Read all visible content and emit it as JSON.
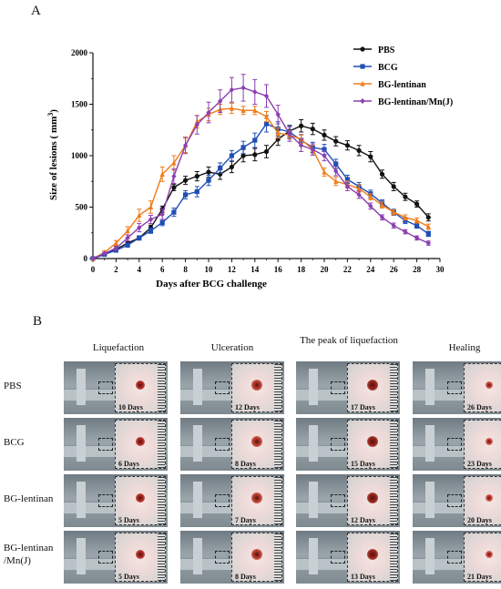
{
  "panels": {
    "a": "A",
    "b": "B"
  },
  "chart_data": {
    "type": "line",
    "xlabel": "Days after BCG challenge",
    "ylabel_main": "Size of lesions (  mm",
    "ylabel_sup": "3",
    "ylabel_end": ")",
    "xlim": [
      0,
      30
    ],
    "ylim": [
      0,
      2000
    ],
    "xticks": [
      0,
      2,
      4,
      6,
      8,
      10,
      12,
      14,
      16,
      18,
      20,
      22,
      24,
      26,
      28,
      30
    ],
    "yticks": [
      0,
      500,
      1000,
      1500,
      2000
    ],
    "legend_position": "top-right",
    "series": [
      {
        "name": "PBS",
        "color": "#111111",
        "marker": "circle",
        "x": [
          0,
          1,
          2,
          3,
          4,
          5,
          6,
          7,
          8,
          9,
          10,
          11,
          12,
          13,
          14,
          15,
          16,
          17,
          18,
          19,
          20,
          21,
          22,
          23,
          24,
          25,
          26,
          27,
          28,
          29
        ],
        "y": [
          0,
          40,
          90,
          150,
          200,
          300,
          480,
          690,
          760,
          800,
          840,
          820,
          890,
          1000,
          1010,
          1040,
          1160,
          1240,
          1290,
          1260,
          1200,
          1140,
          1100,
          1050,
          990,
          820,
          700,
          600,
          530,
          400
        ],
        "err": [
          0,
          10,
          15,
          20,
          20,
          25,
          30,
          30,
          40,
          45,
          50,
          50,
          55,
          60,
          60,
          60,
          60,
          55,
          60,
          55,
          50,
          45,
          45,
          50,
          50,
          40,
          40,
          35,
          30,
          35
        ]
      },
      {
        "name": "BCG",
        "color": "#1f4fb5",
        "marker": "square",
        "x": [
          0,
          1,
          2,
          3,
          4,
          5,
          6,
          7,
          8,
          9,
          10,
          11,
          12,
          13,
          14,
          15,
          16,
          17,
          18,
          19,
          20,
          21,
          22,
          23,
          24,
          25,
          26,
          27,
          28,
          29
        ],
        "y": [
          0,
          40,
          80,
          130,
          200,
          270,
          350,
          450,
          620,
          650,
          760,
          880,
          1000,
          1080,
          1150,
          1310,
          1260,
          1230,
          1150,
          1080,
          1060,
          920,
          770,
          700,
          630,
          540,
          450,
          370,
          320,
          240
        ],
        "err": [
          0,
          10,
          15,
          20,
          20,
          25,
          30,
          40,
          40,
          50,
          50,
          50,
          50,
          60,
          70,
          80,
          70,
          60,
          55,
          50,
          50,
          45,
          40,
          40,
          35,
          30,
          30,
          30,
          25,
          25
        ]
      },
      {
        "name": "BG-lentinan",
        "color": "#ef7c1a",
        "marker": "triangle",
        "x": [
          0,
          1,
          2,
          3,
          4,
          5,
          6,
          7,
          8,
          9,
          10,
          11,
          12,
          13,
          14,
          15,
          16,
          17,
          18,
          19,
          20,
          21,
          22,
          23,
          24,
          25,
          26,
          27,
          28,
          29
        ],
        "y": [
          0,
          60,
          150,
          270,
          420,
          500,
          820,
          930,
          1100,
          1330,
          1400,
          1450,
          1460,
          1440,
          1440,
          1380,
          1220,
          1200,
          1160,
          1060,
          840,
          750,
          720,
          680,
          600,
          520,
          450,
          400,
          370,
          310
        ],
        "err": [
          0,
          15,
          25,
          40,
          60,
          60,
          70,
          70,
          70,
          60,
          60,
          50,
          50,
          40,
          40,
          50,
          50,
          40,
          40,
          40,
          40,
          40,
          35,
          35,
          30,
          30,
          25,
          25,
          25,
          25
        ]
      },
      {
        "name": "BG-lentinan/Mn(J)",
        "color": "#8b3fb0",
        "marker": "diamond",
        "x": [
          0,
          1,
          2,
          3,
          4,
          5,
          6,
          7,
          8,
          9,
          10,
          11,
          12,
          13,
          14,
          15,
          16,
          17,
          18,
          19,
          20,
          21,
          22,
          23,
          24,
          25,
          26,
          27,
          28,
          29
        ],
        "y": [
          0,
          50,
          100,
          200,
          300,
          380,
          430,
          800,
          1100,
          1300,
          1420,
          1530,
          1640,
          1660,
          1620,
          1580,
          1400,
          1210,
          1100,
          1060,
          1000,
          850,
          700,
          620,
          510,
          400,
          320,
          260,
          200,
          150
        ],
        "err": [
          0,
          10,
          20,
          30,
          40,
          40,
          50,
          70,
          80,
          90,
          100,
          110,
          120,
          130,
          120,
          110,
          90,
          70,
          60,
          55,
          50,
          45,
          40,
          35,
          30,
          25,
          25,
          20,
          20,
          20
        ]
      }
    ]
  },
  "grid": {
    "columns": [
      "Liquefaction",
      "Ulceration",
      "The peak of liquefaction",
      "Healing"
    ],
    "rows": [
      {
        "label": "PBS",
        "days": [
          "10 Days",
          "12 Days",
          "17 Days",
          "26 Days"
        ]
      },
      {
        "label": "BCG",
        "days": [
          "6  Days",
          "8  Days",
          "15 Days",
          "23 Days"
        ]
      },
      {
        "label": "BG-lentinan",
        "days": [
          "5  Days",
          "7  Days",
          "12 Days",
          "20 Days"
        ]
      },
      {
        "label": "BG-lentinan /Mn(J)",
        "days": [
          "5  Days",
          "8  Days",
          "13 Days",
          "21 Days"
        ]
      }
    ]
  }
}
